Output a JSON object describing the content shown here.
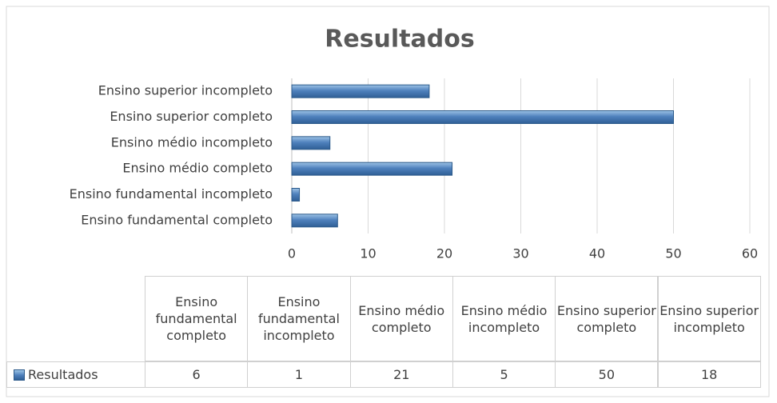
{
  "chart_data": {
    "type": "bar",
    "orientation": "horizontal",
    "title": "Resultados",
    "categories": [
      "Ensino fundamental completo",
      "Ensino fundamental incompleto",
      "Ensino médio completo",
      "Ensino médio incompleto",
      "Ensino superior completo",
      "Ensino superior incompleto"
    ],
    "series": [
      {
        "name": "Resultados",
        "color": "#4f81bd",
        "values": [
          6,
          1,
          21,
          5,
          50,
          18
        ]
      }
    ],
    "xlim": [
      0,
      60
    ],
    "xticks": [
      0,
      10,
      20,
      30,
      40,
      50,
      60
    ],
    "grid": true,
    "data_table": true
  }
}
